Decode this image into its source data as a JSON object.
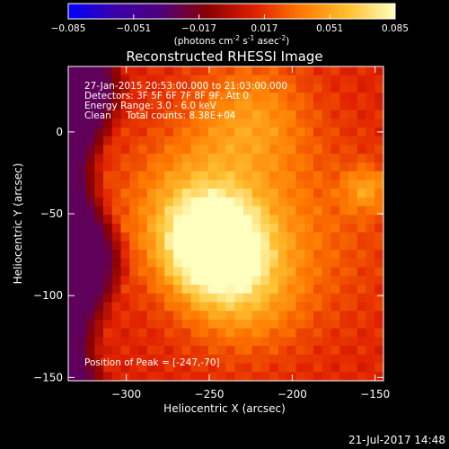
{
  "colorbar": {
    "ticks": [
      "-0.085",
      "-0.051",
      "-0.017",
      "0.017",
      "0.051",
      "0.085"
    ],
    "unit_prefix": "(photons cm",
    "unit_exp1": "-2",
    "unit_mid": " s",
    "unit_exp2": "-1",
    "unit_mid2": " asec",
    "unit_exp3": "-2",
    "unit_suffix": ")",
    "colors": [
      "#0000ff",
      "#3a00aa",
      "#50007a",
      "#8a0000",
      "#e02000",
      "#ff7a00",
      "#ffc030",
      "#ffffc0"
    ]
  },
  "annotations": {
    "time_range": "27-Jan-2015 20:53:00.000 to 21:03:00.000",
    "detectors": "Detectors: 3F 5F 6F 7F 8F 9F, Att 0",
    "energy": "Energy Range: 3.0 - 6.0 keV",
    "clean": "Clean     Total counts: 8.38E+04",
    "peak": "Position of Peak = [-247,-70]"
  },
  "footer": {
    "timestamp": "21-Jul-2017 14:48"
  },
  "chart_data": {
    "type": "heatmap",
    "title": "Reconstructed RHESSI Image",
    "xlabel": "Heliocentric X (arcsec)",
    "ylabel": "Heliocentric Y (arcsec)",
    "xlim": [
      -335,
      -145
    ],
    "ylim": [
      -152,
      40
    ],
    "xticks": [
      -300,
      -250,
      -200,
      -150
    ],
    "yticks": [
      0,
      -50,
      -100,
      -150
    ],
    "zlim": [
      -0.085,
      0.085
    ],
    "peak": [
      -247,
      -70
    ],
    "sources": [
      {
        "x": -247,
        "y": -70,
        "amp": 0.085,
        "sigma": 20
      },
      {
        "x": -260,
        "y": -45,
        "amp": 0.035,
        "sigma": 30
      },
      {
        "x": -230,
        "y": -100,
        "amp": 0.03,
        "sigma": 25
      },
      {
        "x": -225,
        "y": 10,
        "amp": 0.03,
        "sigma": 25
      },
      {
        "x": -155,
        "y": -35,
        "amp": 0.03,
        "sigma": 10
      },
      {
        "x": -200,
        "y": -60,
        "amp": 0.02,
        "sigma": 40
      }
    ],
    "background": 0.012,
    "dark_region": {
      "description": "negative values along left edge",
      "x_edge": -305,
      "level": -0.03
    }
  }
}
